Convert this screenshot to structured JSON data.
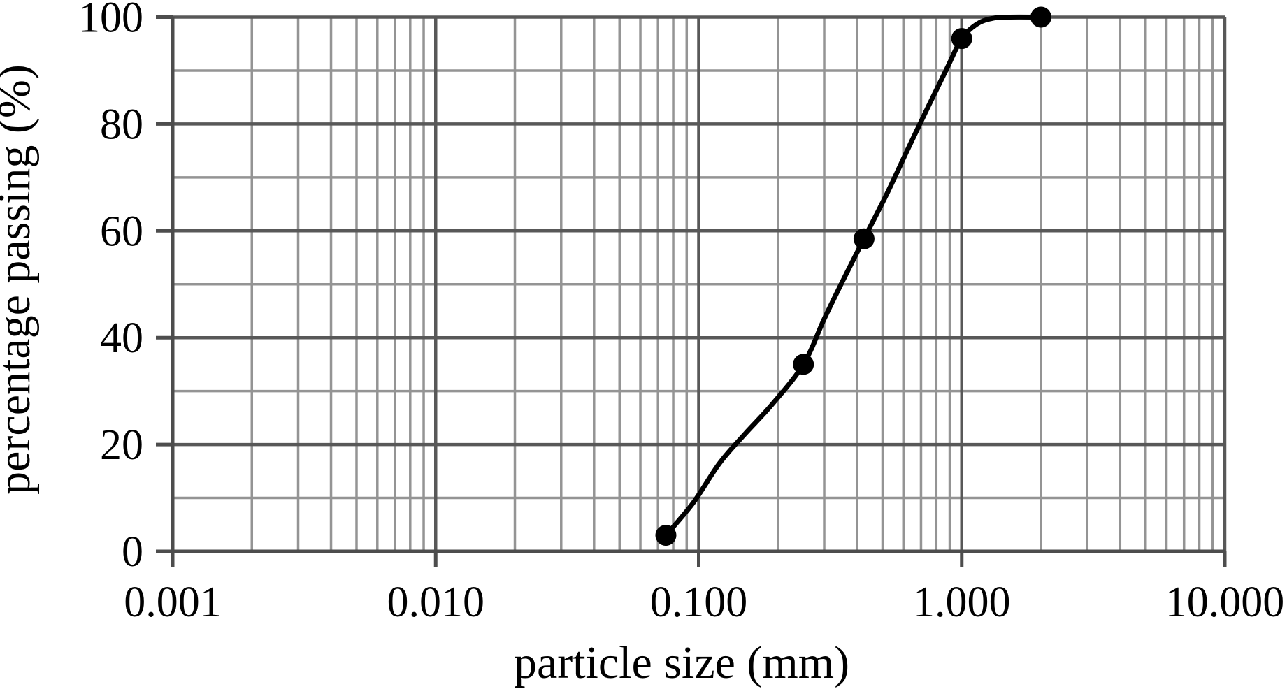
{
  "page": {
    "background": "#ffffff"
  },
  "chart_data": {
    "type": "line",
    "title": "",
    "xlabel": "particle size (mm)",
    "ylabel": "percentage passing (%)",
    "x_scale": "log",
    "xlim": [
      0.001,
      10
    ],
    "ylim": [
      0,
      100
    ],
    "grid": {
      "major": true,
      "minor": true
    },
    "legend": "none",
    "x_ticks": [
      {
        "value": 0.001,
        "label": "0.001"
      },
      {
        "value": 0.01,
        "label": "0.010"
      },
      {
        "value": 0.1,
        "label": "0.100"
      },
      {
        "value": 1.0,
        "label": "1.000"
      },
      {
        "value": 10.0,
        "label": "10.000"
      }
    ],
    "y_ticks": [
      {
        "value": 0,
        "label": "0"
      },
      {
        "value": 20,
        "label": "20"
      },
      {
        "value": 40,
        "label": "40"
      },
      {
        "value": 60,
        "label": "60"
      },
      {
        "value": 80,
        "label": "80"
      },
      {
        "value": 100,
        "label": "100"
      }
    ],
    "y_minor_ticks": [
      10,
      30,
      50,
      70,
      90
    ],
    "series": [
      {
        "name": "percentage passing",
        "marker": "filled-circle",
        "line_style": "smooth",
        "color": "#000000",
        "points": [
          {
            "x": 0.075,
            "y": 3
          },
          {
            "x": 0.25,
            "y": 35
          },
          {
            "x": 0.425,
            "y": 58.5
          },
          {
            "x": 1.0,
            "y": 96
          },
          {
            "x": 2.0,
            "y": 100
          }
        ],
        "curve_trace": [
          [
            0.075,
            3
          ],
          [
            0.095,
            9
          ],
          [
            0.12,
            16.5
          ],
          [
            0.15,
            22
          ],
          [
            0.19,
            27.5
          ],
          [
            0.25,
            35
          ],
          [
            0.3,
            43.5
          ],
          [
            0.36,
            51.5
          ],
          [
            0.425,
            58.5
          ],
          [
            0.52,
            67
          ],
          [
            0.62,
            75
          ],
          [
            0.75,
            83.5
          ],
          [
            0.88,
            90.5
          ],
          [
            1.0,
            96
          ],
          [
            1.15,
            98.8
          ],
          [
            1.32,
            99.8
          ],
          [
            1.5,
            100
          ],
          [
            2.0,
            100
          ]
        ]
      }
    ],
    "colors": {
      "curve": "#000000",
      "marker": "#000000",
      "major_grid": "#585858",
      "minor_grid": "#949494",
      "axis": "#4d4d4d",
      "text": "#000000"
    }
  }
}
